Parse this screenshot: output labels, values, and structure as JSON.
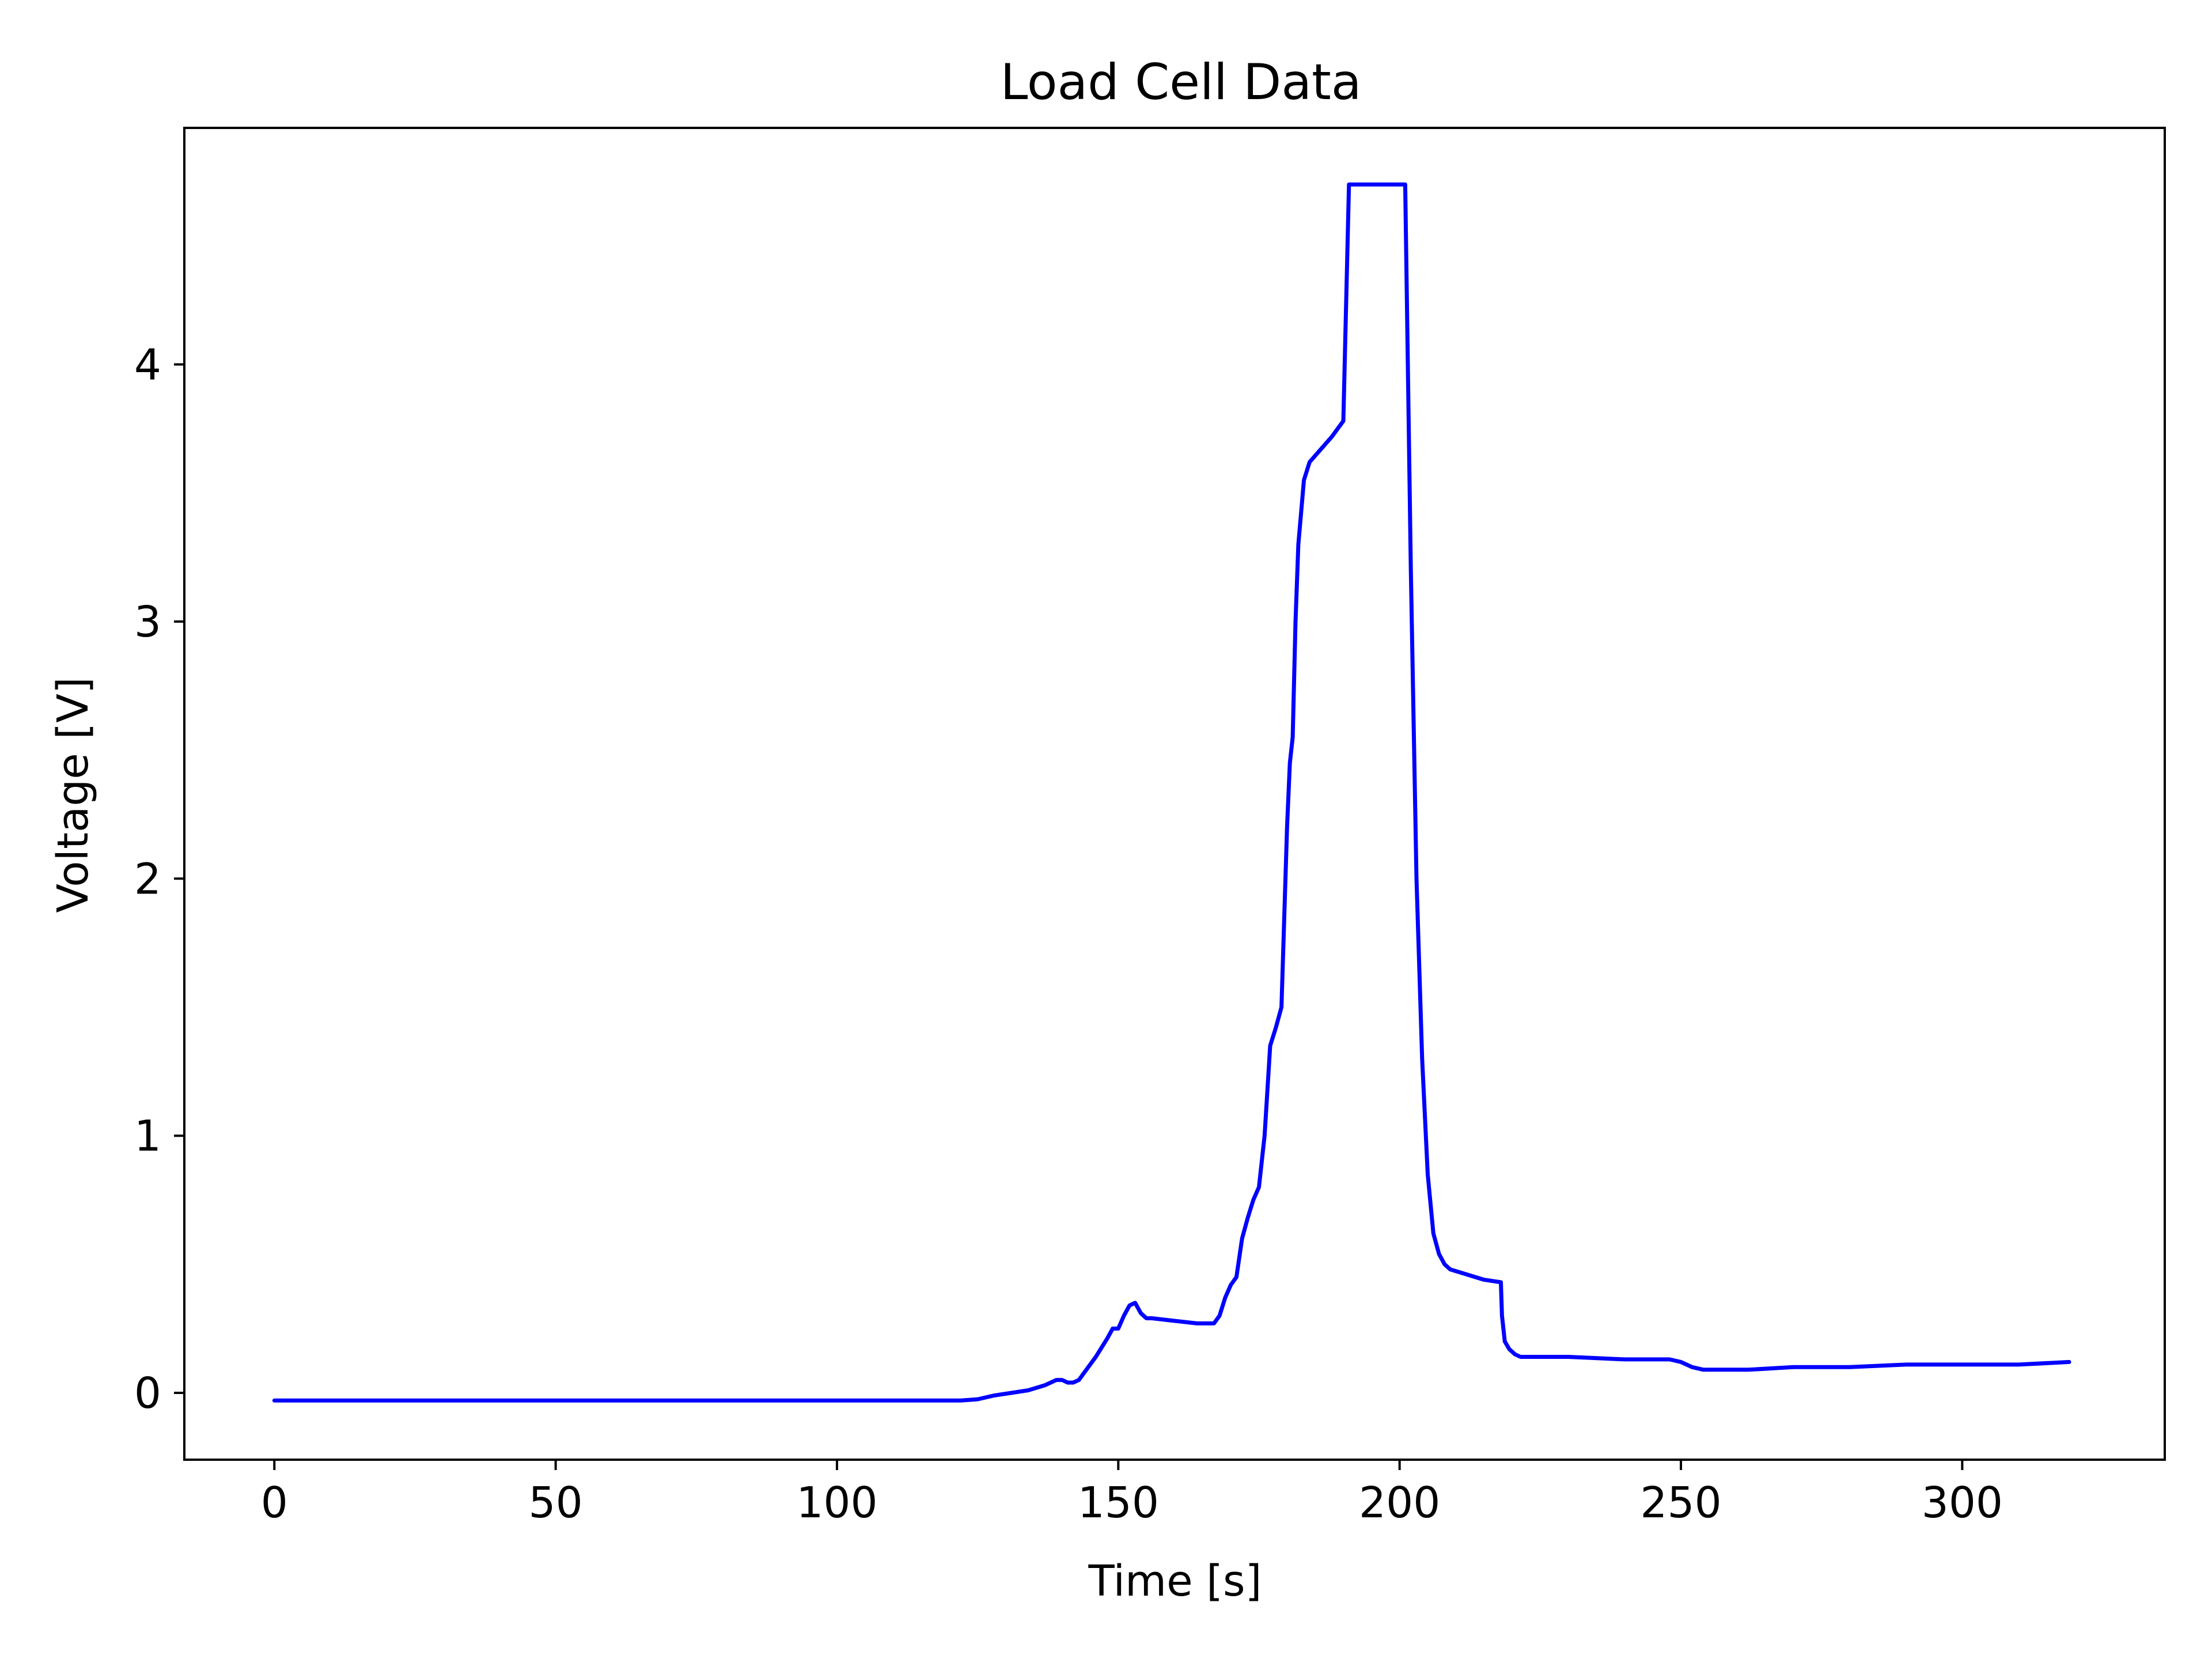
{
  "chart_data": {
    "type": "line",
    "title": "Load Cell Data",
    "xlabel": "Time [s]",
    "ylabel": "Voltage [V]",
    "xlim": [
      -16,
      336
    ],
    "ylim": [
      -0.26,
      4.92
    ],
    "xticks": [
      0,
      50,
      100,
      150,
      200,
      250,
      300
    ],
    "yticks": [
      0,
      1,
      2,
      3,
      4
    ],
    "grid": false,
    "color": "#0000ff",
    "series": [
      {
        "x": [
          0,
          20,
          50,
          80,
          110,
          122,
          125,
          128,
          131,
          134,
          137,
          139,
          140,
          141,
          142,
          143,
          144,
          146,
          148,
          149,
          150,
          151,
          152,
          153,
          154,
          155,
          156,
          160,
          164,
          167,
          168,
          169,
          170,
          171,
          172,
          173,
          174,
          175,
          176,
          177,
          178,
          179,
          180,
          180.5,
          181,
          181.5,
          182,
          183,
          184,
          186,
          188,
          189,
          190,
          191,
          195,
          201,
          202,
          203,
          204,
          205,
          206,
          207,
          208,
          209,
          212,
          215,
          218,
          218.2,
          218.7,
          219.5,
          220.5,
          221.5,
          223,
          230,
          240,
          248,
          250,
          252,
          254,
          256,
          258,
          260,
          262,
          270,
          280,
          290,
          300,
          310,
          319
        ],
        "y": [
          -0.03,
          -0.03,
          -0.03,
          -0.03,
          -0.03,
          -0.03,
          -0.025,
          -0.01,
          0.0,
          0.01,
          0.03,
          0.05,
          0.05,
          0.04,
          0.04,
          0.05,
          0.08,
          0.14,
          0.21,
          0.25,
          0.25,
          0.3,
          0.34,
          0.35,
          0.31,
          0.29,
          0.29,
          0.28,
          0.27,
          0.27,
          0.3,
          0.37,
          0.42,
          0.45,
          0.6,
          0.68,
          0.75,
          0.8,
          1.0,
          1.35,
          1.42,
          1.5,
          2.2,
          2.45,
          2.55,
          3.0,
          3.3,
          3.55,
          3.62,
          3.67,
          3.72,
          3.75,
          3.78,
          4.7,
          4.7,
          4.7,
          3.2,
          2.0,
          1.3,
          0.85,
          0.62,
          0.54,
          0.5,
          0.48,
          0.46,
          0.44,
          0.43,
          0.3,
          0.2,
          0.17,
          0.15,
          0.14,
          0.14,
          0.14,
          0.13,
          0.13,
          0.12,
          0.1,
          0.09,
          0.09,
          0.09,
          0.09,
          0.09,
          0.1,
          0.1,
          0.11,
          0.11,
          0.11,
          0.12
        ]
      }
    ]
  }
}
